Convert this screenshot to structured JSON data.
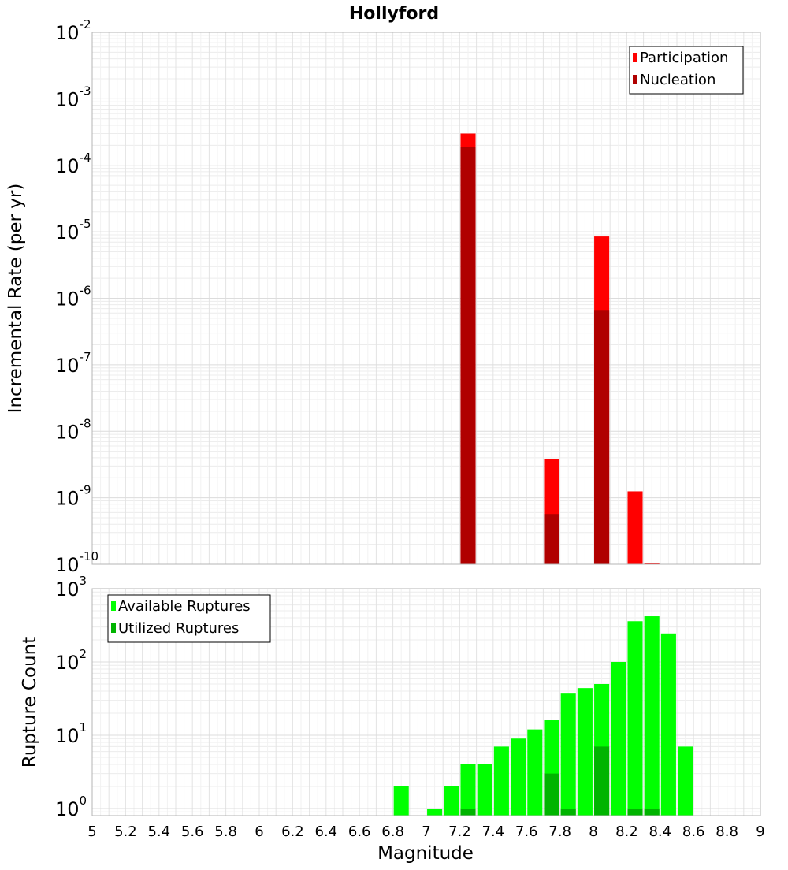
{
  "title": "Hollyford",
  "xlabel": "Magnitude",
  "x_ticks": [
    "5",
    "5.2",
    "5.4",
    "5.6",
    "5.8",
    "6",
    "6.2",
    "6.4",
    "6.6",
    "6.8",
    "7",
    "7.2",
    "7.4",
    "7.6",
    "7.8",
    "8",
    "8.2",
    "8.4",
    "8.6",
    "8.8",
    "9"
  ],
  "xlim": [
    5,
    9
  ],
  "chart_data": [
    {
      "type": "bar",
      "title": "Hollyford",
      "xlabel": "Magnitude",
      "ylabel": "Incremental Rate (per yr)",
      "y_scale": "log",
      "ylim": [
        1e-10,
        0.01
      ],
      "y_ticks": [
        {
          "base": "10",
          "exp": "-10"
        },
        {
          "base": "10",
          "exp": "-9"
        },
        {
          "base": "10",
          "exp": "-8"
        },
        {
          "base": "10",
          "exp": "-7"
        },
        {
          "base": "10",
          "exp": "-6"
        },
        {
          "base": "10",
          "exp": "-5"
        },
        {
          "base": "10",
          "exp": "-4"
        },
        {
          "base": "10",
          "exp": "-3"
        },
        {
          "base": "10",
          "exp": "-2"
        }
      ],
      "grid": true,
      "legend_position": "top-right",
      "series": [
        {
          "name": "Participation",
          "color": "#ff0000",
          "points": [
            {
              "x": 7.25,
              "y": 0.0003
            },
            {
              "x": 7.75,
              "y": 3.8e-09
            },
            {
              "x": 8.05,
              "y": 8.5e-06
            },
            {
              "x": 8.25,
              "y": 1.25e-09
            },
            {
              "x": 8.35,
              "y": 1.05e-10
            }
          ]
        },
        {
          "name": "Nucleation",
          "color": "#b00000",
          "points": [
            {
              "x": 7.25,
              "y": 0.00019
            },
            {
              "x": 7.75,
              "y": 5.7e-10
            },
            {
              "x": 8.05,
              "y": 6.5e-07
            }
          ]
        }
      ]
    },
    {
      "type": "bar",
      "xlabel": "Magnitude",
      "ylabel": "Rupture Count",
      "y_scale": "log",
      "ylim": [
        0.8,
        1000
      ],
      "y_ticks": [
        {
          "base": "10",
          "exp": "0",
          "value": 1
        },
        {
          "base": "10",
          "exp": "1",
          "value": 10
        },
        {
          "base": "10",
          "exp": "2",
          "value": 100
        },
        {
          "base": "10",
          "exp": "3",
          "value": 1000
        }
      ],
      "grid": true,
      "legend_position": "top-left",
      "series": [
        {
          "name": "Available Ruptures",
          "color": "#00ff00",
          "points": [
            {
              "x": 6.85,
              "y": 2
            },
            {
              "x": 7.05,
              "y": 1
            },
            {
              "x": 7.15,
              "y": 2
            },
            {
              "x": 7.25,
              "y": 4
            },
            {
              "x": 7.35,
              "y": 4
            },
            {
              "x": 7.45,
              "y": 7
            },
            {
              "x": 7.55,
              "y": 9
            },
            {
              "x": 7.65,
              "y": 12
            },
            {
              "x": 7.75,
              "y": 16
            },
            {
              "x": 7.85,
              "y": 37
            },
            {
              "x": 7.95,
              "y": 44
            },
            {
              "x": 8.05,
              "y": 50
            },
            {
              "x": 8.15,
              "y": 100
            },
            {
              "x": 8.25,
              "y": 360
            },
            {
              "x": 8.35,
              "y": 420
            },
            {
              "x": 8.45,
              "y": 245
            },
            {
              "x": 8.55,
              "y": 7
            }
          ]
        },
        {
          "name": "Utilized Ruptures",
          "color": "#00b400",
          "points": [
            {
              "x": 7.25,
              "y": 1
            },
            {
              "x": 7.75,
              "y": 3
            },
            {
              "x": 7.85,
              "y": 1
            },
            {
              "x": 8.05,
              "y": 7
            },
            {
              "x": 8.25,
              "y": 1
            },
            {
              "x": 8.35,
              "y": 1
            }
          ]
        }
      ]
    }
  ]
}
